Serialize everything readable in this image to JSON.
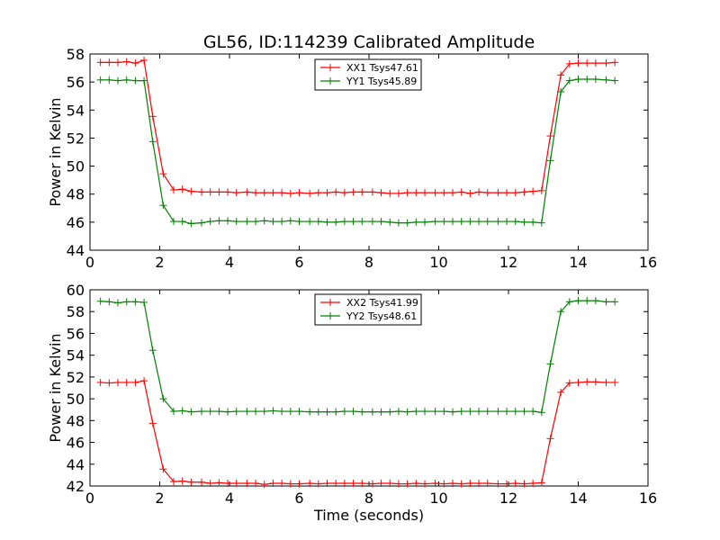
{
  "title": "GL56, ID:114239 Calibrated Amplitude",
  "chart_data": [
    {
      "type": "line",
      "xlabel": "",
      "ylabel": "Power in Kelvin",
      "xlim": [
        0,
        16
      ],
      "ylim": [
        44,
        58
      ],
      "xticks": [
        "0",
        "2",
        "4",
        "6",
        "8",
        "10",
        "12",
        "14",
        "16"
      ],
      "yticks": [
        "44",
        "46",
        "48",
        "50",
        "52",
        "54",
        "56",
        "58"
      ],
      "legend": "top-center",
      "grid": false,
      "series": [
        {
          "name": "XX1 Tsys47.61",
          "color": "#ff0000",
          "x": [
            0.3,
            0.55,
            0.8,
            1.05,
            1.3,
            1.55,
            1.8,
            2.1,
            2.4,
            2.65,
            2.9,
            3.2,
            3.45,
            3.7,
            3.95,
            4.2,
            4.5,
            4.75,
            5.0,
            5.25,
            5.5,
            5.75,
            6.0,
            6.3,
            6.55,
            6.8,
            7.05,
            7.3,
            7.55,
            7.8,
            8.1,
            8.35,
            8.6,
            8.85,
            9.1,
            9.35,
            9.6,
            9.9,
            10.15,
            10.4,
            10.65,
            10.9,
            11.15,
            11.4,
            11.7,
            11.95,
            12.2,
            12.45,
            12.7,
            12.95,
            13.2,
            13.5,
            13.75,
            14.0,
            14.25,
            14.5,
            14.8,
            15.05
          ],
          "values": [
            57.4,
            57.4,
            57.4,
            57.45,
            57.35,
            57.55,
            53.55,
            49.45,
            48.3,
            48.35,
            48.2,
            48.15,
            48.15,
            48.15,
            48.15,
            48.1,
            48.15,
            48.1,
            48.1,
            48.1,
            48.1,
            48.05,
            48.1,
            48.05,
            48.1,
            48.1,
            48.15,
            48.1,
            48.15,
            48.15,
            48.15,
            48.1,
            48.05,
            48.05,
            48.1,
            48.1,
            48.1,
            48.1,
            48.1,
            48.1,
            48.15,
            48.05,
            48.15,
            48.1,
            48.1,
            48.1,
            48.1,
            48.15,
            48.2,
            48.25,
            52.15,
            56.5,
            57.3,
            57.35,
            57.35,
            57.35,
            57.35,
            57.4
          ]
        },
        {
          "name": "YY1 Tsys45.89",
          "color": "#008000",
          "x": [
            0.3,
            0.55,
            0.8,
            1.05,
            1.3,
            1.55,
            1.8,
            2.1,
            2.4,
            2.65,
            2.9,
            3.2,
            3.45,
            3.7,
            3.95,
            4.2,
            4.5,
            4.75,
            5.0,
            5.25,
            5.5,
            5.75,
            6.0,
            6.3,
            6.55,
            6.8,
            7.05,
            7.3,
            7.55,
            7.8,
            8.1,
            8.35,
            8.6,
            8.85,
            9.1,
            9.35,
            9.6,
            9.9,
            10.15,
            10.4,
            10.65,
            10.9,
            11.15,
            11.4,
            11.7,
            11.95,
            12.2,
            12.45,
            12.7,
            12.95,
            13.2,
            13.5,
            13.75,
            14.0,
            14.25,
            14.5,
            14.8,
            15.05
          ],
          "values": [
            56.15,
            56.15,
            56.1,
            56.15,
            56.1,
            56.1,
            51.75,
            47.2,
            46.05,
            46.05,
            45.9,
            45.95,
            46.05,
            46.1,
            46.1,
            46.05,
            46.05,
            46.05,
            46.1,
            46.05,
            46.05,
            46.1,
            46.05,
            46.05,
            46.05,
            46.0,
            46.0,
            46.05,
            46.05,
            46.05,
            46.05,
            46.05,
            46.0,
            45.95,
            45.95,
            46.0,
            46.0,
            46.05,
            46.05,
            46.05,
            46.05,
            46.05,
            46.05,
            46.05,
            46.05,
            46.05,
            46.05,
            46.0,
            46.0,
            45.95,
            50.4,
            55.3,
            56.1,
            56.2,
            56.2,
            56.2,
            56.15,
            56.1
          ]
        }
      ]
    },
    {
      "type": "line",
      "xlabel": "Time (seconds)",
      "ylabel": "Power in Kelvin",
      "xlim": [
        0,
        16
      ],
      "ylim": [
        42,
        60
      ],
      "xticks": [
        "0",
        "2",
        "4",
        "6",
        "8",
        "10",
        "12",
        "14",
        "16"
      ],
      "yticks": [
        "42",
        "44",
        "46",
        "48",
        "50",
        "52",
        "54",
        "56",
        "58",
        "60"
      ],
      "legend": "top-center",
      "grid": false,
      "series": [
        {
          "name": "XX2 Tsys41.99",
          "color": "#ff0000",
          "x": [
            0.3,
            0.55,
            0.8,
            1.05,
            1.3,
            1.55,
            1.8,
            2.1,
            2.4,
            2.65,
            2.9,
            3.2,
            3.45,
            3.7,
            3.95,
            4.2,
            4.5,
            4.75,
            5.0,
            5.25,
            5.5,
            5.75,
            6.0,
            6.3,
            6.55,
            6.8,
            7.05,
            7.3,
            7.55,
            7.8,
            8.1,
            8.35,
            8.6,
            8.85,
            9.1,
            9.35,
            9.6,
            9.9,
            10.15,
            10.4,
            10.65,
            10.9,
            11.15,
            11.4,
            11.7,
            11.95,
            12.2,
            12.45,
            12.7,
            12.95,
            13.2,
            13.5,
            13.75,
            14.0,
            14.25,
            14.5,
            14.8,
            15.05
          ],
          "values": [
            51.5,
            51.45,
            51.5,
            51.5,
            51.5,
            51.65,
            47.75,
            43.55,
            42.4,
            42.45,
            42.35,
            42.35,
            42.25,
            42.3,
            42.25,
            42.25,
            42.25,
            42.25,
            42.15,
            42.25,
            42.25,
            42.2,
            42.2,
            42.25,
            42.2,
            42.25,
            42.25,
            42.25,
            42.25,
            42.25,
            42.2,
            42.25,
            42.25,
            42.2,
            42.2,
            42.25,
            42.2,
            42.25,
            42.2,
            42.25,
            42.2,
            42.25,
            42.25,
            42.25,
            42.2,
            42.2,
            42.25,
            42.2,
            42.25,
            42.3,
            46.35,
            50.6,
            51.45,
            51.5,
            51.55,
            51.55,
            51.5,
            51.5
          ]
        },
        {
          "name": "YY2 Tsys48.61",
          "color": "#008000",
          "x": [
            0.3,
            0.55,
            0.8,
            1.05,
            1.3,
            1.55,
            1.8,
            2.1,
            2.4,
            2.65,
            2.9,
            3.2,
            3.45,
            3.7,
            3.95,
            4.2,
            4.5,
            4.75,
            5.0,
            5.25,
            5.5,
            5.75,
            6.0,
            6.3,
            6.55,
            6.8,
            7.05,
            7.3,
            7.55,
            7.8,
            8.1,
            8.35,
            8.6,
            8.85,
            9.1,
            9.35,
            9.6,
            9.9,
            10.15,
            10.4,
            10.65,
            10.9,
            11.15,
            11.4,
            11.7,
            11.95,
            12.2,
            12.45,
            12.7,
            12.95,
            13.2,
            13.5,
            13.75,
            14.0,
            14.25,
            14.5,
            14.8,
            15.05
          ],
          "values": [
            58.95,
            58.9,
            58.8,
            58.9,
            58.9,
            58.85,
            54.45,
            50.0,
            48.85,
            48.9,
            48.8,
            48.85,
            48.85,
            48.85,
            48.8,
            48.85,
            48.85,
            48.85,
            48.85,
            48.9,
            48.85,
            48.85,
            48.85,
            48.8,
            48.8,
            48.8,
            48.8,
            48.85,
            48.85,
            48.8,
            48.8,
            48.8,
            48.8,
            48.85,
            48.8,
            48.85,
            48.85,
            48.85,
            48.85,
            48.8,
            48.85,
            48.85,
            48.85,
            48.85,
            48.85,
            48.85,
            48.85,
            48.85,
            48.85,
            48.75,
            53.2,
            58.0,
            58.9,
            59.0,
            59.0,
            59.0,
            58.9,
            58.9
          ]
        }
      ]
    }
  ]
}
